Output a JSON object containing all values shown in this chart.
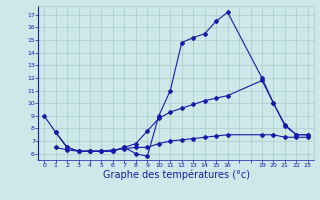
{
  "line1_x": [
    0,
    1,
    2,
    3,
    4,
    5,
    6,
    7,
    8,
    9,
    10,
    11,
    12,
    13,
    14,
    15,
    16,
    19,
    20,
    21,
    22,
    23
  ],
  "line1_y": [
    9.0,
    7.7,
    6.5,
    6.2,
    6.2,
    6.2,
    6.2,
    6.5,
    6.0,
    5.8,
    9.0,
    11.0,
    14.8,
    15.2,
    15.5,
    16.5,
    17.2,
    12.0,
    10.0,
    8.2,
    7.5,
    7.5
  ],
  "line2_x": [
    1,
    2,
    3,
    4,
    5,
    6,
    7,
    8,
    9,
    10,
    11,
    12,
    13,
    14,
    15,
    16,
    19,
    20,
    21,
    22,
    23
  ],
  "line2_y": [
    7.7,
    6.5,
    6.2,
    6.2,
    6.2,
    6.2,
    6.5,
    6.8,
    7.8,
    8.8,
    9.3,
    9.6,
    9.9,
    10.2,
    10.4,
    10.6,
    11.8,
    10.0,
    8.3,
    7.5,
    7.5
  ],
  "line3_x": [
    1,
    2,
    3,
    4,
    5,
    6,
    7,
    8,
    9,
    10,
    11,
    12,
    13,
    14,
    15,
    16,
    19,
    20,
    21,
    22,
    23
  ],
  "line3_y": [
    6.5,
    6.3,
    6.2,
    6.2,
    6.2,
    6.3,
    6.4,
    6.5,
    6.5,
    6.8,
    7.0,
    7.1,
    7.2,
    7.3,
    7.4,
    7.5,
    7.5,
    7.5,
    7.3,
    7.3,
    7.3
  ],
  "line_color": "#1a1aaa",
  "bg_color": "#cce8e8",
  "grid_color": "#aacccc",
  "xlabel": "Graphe des températures (°c)",
  "xlabel_fontsize": 7,
  "ylim": [
    5.5,
    17.7
  ],
  "yticks": [
    6,
    7,
    8,
    9,
    10,
    11,
    12,
    13,
    14,
    15,
    16,
    17
  ],
  "xtick_positions": [
    0,
    1,
    2,
    3,
    4,
    5,
    6,
    7,
    8,
    9,
    10,
    11,
    12,
    13,
    14,
    15,
    16,
    17,
    18,
    19,
    20,
    21,
    22,
    23
  ],
  "xtick_labels": [
    "0",
    "1",
    "2",
    "3",
    "4",
    "5",
    "6",
    "7",
    "8",
    "9",
    "10",
    "11",
    "12",
    "13",
    "14",
    "15",
    "16",
    "",
    "",
    "19",
    "20",
    "21",
    "22",
    "23"
  ],
  "xlim": [
    -0.5,
    23.5
  ]
}
